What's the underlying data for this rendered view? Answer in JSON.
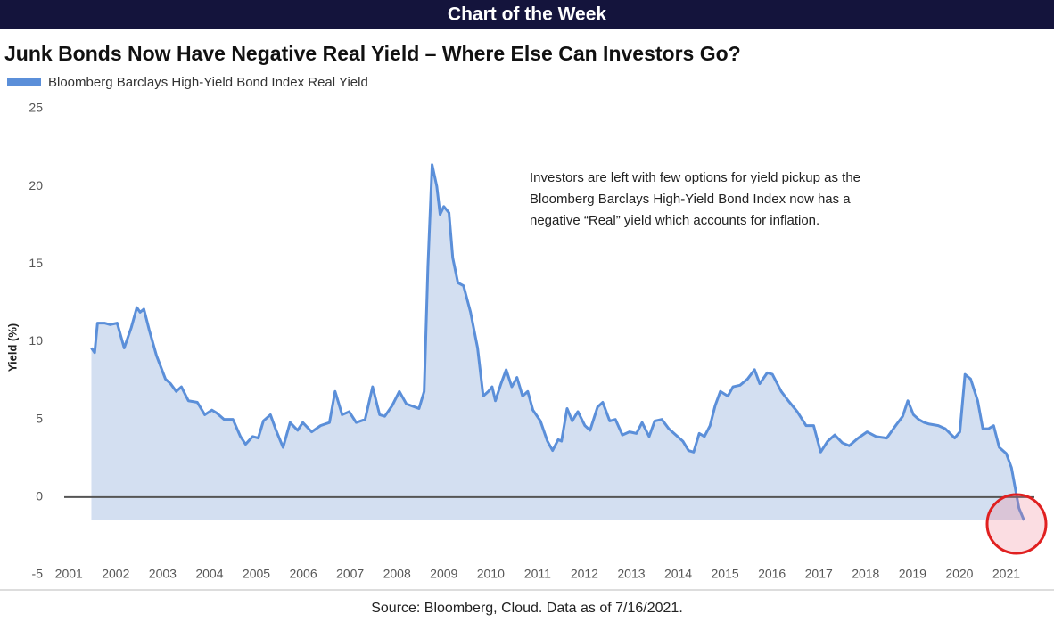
{
  "chart_data": {
    "type": "line",
    "header": "Chart of the Week",
    "title": "Junk Bonds Now Have Negative Real Yield – Where Else Can Investors Go?",
    "ylabel": "Yield (%)",
    "annotation": [
      "Investors are left with few options for yield pickup as the",
      "Bloomberg Barclays High-Yield Bond Index now has a",
      "negative “Real” yield which accounts for inflation."
    ],
    "source": "Source: Bloomberg, Cloud. Data as of 7/16/2021.",
    "xlim": [
      2000.9,
      2021.6
    ],
    "xticks": [
      2001,
      2002,
      2003,
      2004,
      2005,
      2006,
      2007,
      2008,
      2009,
      2010,
      2011,
      2012,
      2013,
      2014,
      2015,
      2016,
      2017,
      2018,
      2019,
      2020,
      2021
    ],
    "ylim": [
      -5,
      25
    ],
    "yticks": [
      -5,
      0,
      5,
      10,
      15,
      20,
      25
    ],
    "grid": false,
    "fill": true,
    "x": [
      2001.48,
      2001.55,
      2001.61,
      2001.76,
      2001.88,
      2002.03,
      2002.18,
      2002.33,
      2002.45,
      2002.52,
      2002.6,
      2002.71,
      2002.87,
      2003.06,
      2003.17,
      2003.29,
      2003.4,
      2003.55,
      2003.74,
      2003.9,
      2004.05,
      2004.16,
      2004.31,
      2004.5,
      2004.66,
      2004.77,
      2004.92,
      2005.04,
      2005.15,
      2005.3,
      2005.42,
      2005.57,
      2005.72,
      2005.88,
      2005.99,
      2006.18,
      2006.37,
      2006.56,
      2006.68,
      2006.83,
      2006.98,
      2007.13,
      2007.32,
      2007.48,
      2007.63,
      2007.74,
      2007.9,
      2008.05,
      2008.2,
      2008.47,
      2008.58,
      2008.66,
      2008.75,
      2008.85,
      2008.92,
      2009.0,
      2009.11,
      2009.19,
      2009.3,
      2009.42,
      2009.57,
      2009.72,
      2009.84,
      2009.95,
      2010.03,
      2010.1,
      2010.22,
      2010.33,
      2010.45,
      2010.56,
      2010.68,
      2010.79,
      2010.9,
      2011.06,
      2011.21,
      2011.32,
      2011.44,
      2011.51,
      2011.63,
      2011.74,
      2011.86,
      2012.01,
      2012.12,
      2012.28,
      2012.39,
      2012.54,
      2012.66,
      2012.81,
      2012.96,
      2013.11,
      2013.23,
      2013.38,
      2013.5,
      2013.65,
      2013.8,
      2013.95,
      2014.1,
      2014.22,
      2014.33,
      2014.45,
      2014.56,
      2014.68,
      2014.79,
      2014.9,
      2015.06,
      2015.17,
      2015.32,
      2015.48,
      2015.63,
      2015.74,
      2015.9,
      2016.01,
      2016.2,
      2016.35,
      2016.54,
      2016.73,
      2016.89,
      2017.04,
      2017.19,
      2017.34,
      2017.5,
      2017.65,
      2017.84,
      2018.03,
      2018.22,
      2018.45,
      2018.64,
      2018.79,
      2018.9,
      2019.02,
      2019.13,
      2019.25,
      2019.36,
      2019.55,
      2019.7,
      2019.9,
      2020.01,
      2020.12,
      2020.24,
      2020.39,
      2020.5,
      2020.62,
      2020.73,
      2020.85,
      2021.0,
      2021.11,
      2021.19,
      2021.27,
      2021.38
    ],
    "series": [
      {
        "name": "Bloomberg Barclays High-Yield Bond Index Real Yield",
        "color": "#5b8fd9",
        "values": [
          9.6,
          9.3,
          11.2,
          11.2,
          11.1,
          11.2,
          9.6,
          10.9,
          12.2,
          11.9,
          12.1,
          10.8,
          9.1,
          7.6,
          7.3,
          6.8,
          7.1,
          6.2,
          6.1,
          5.3,
          5.6,
          5.4,
          5.0,
          5.0,
          3.9,
          3.4,
          3.9,
          3.8,
          4.9,
          5.3,
          4.3,
          3.2,
          4.8,
          4.3,
          4.8,
          4.2,
          4.6,
          4.8,
          6.8,
          5.3,
          5.5,
          4.8,
          5.0,
          7.1,
          5.3,
          5.2,
          5.9,
          6.8,
          6.0,
          5.7,
          6.8,
          14.8,
          21.4,
          20.0,
          18.2,
          18.7,
          18.3,
          15.4,
          13.8,
          13.6,
          11.9,
          9.6,
          6.5,
          6.8,
          7.1,
          6.2,
          7.3,
          8.2,
          7.1,
          7.7,
          6.5,
          6.8,
          5.6,
          4.9,
          3.6,
          3.0,
          3.7,
          3.6,
          5.7,
          4.9,
          5.5,
          4.6,
          4.3,
          5.8,
          6.1,
          4.9,
          5.0,
          4.0,
          4.2,
          4.1,
          4.8,
          3.9,
          4.9,
          5.0,
          4.4,
          4.0,
          3.6,
          3.0,
          2.9,
          4.1,
          3.9,
          4.6,
          5.9,
          6.8,
          6.5,
          7.1,
          7.2,
          7.6,
          8.2,
          7.3,
          8.0,
          7.9,
          6.8,
          6.2,
          5.5,
          4.6,
          4.6,
          2.9,
          3.6,
          4.0,
          3.5,
          3.3,
          3.8,
          4.2,
          3.9,
          3.8,
          4.6,
          5.2,
          6.2,
          5.3,
          5.0,
          4.8,
          4.7,
          4.6,
          4.4,
          3.8,
          4.2,
          7.9,
          7.6,
          6.2,
          4.4,
          4.4,
          4.6,
          3.2,
          2.8,
          1.9,
          0.6,
          -0.7,
          -1.5
        ]
      }
    ]
  }
}
